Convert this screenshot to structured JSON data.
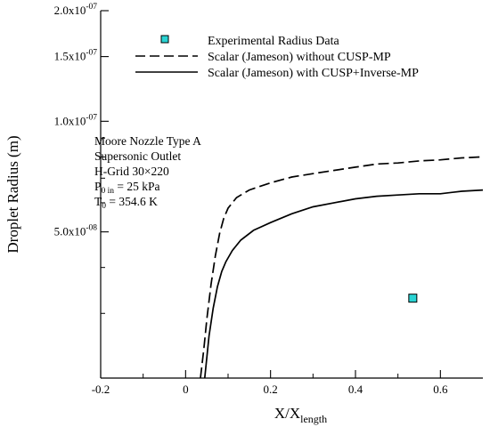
{
  "chart_data": {
    "type": "line",
    "xlabel_main": "X/X",
    "xlabel_sub": "length",
    "ylabel": "Droplet Radius (m)",
    "xlim": [
      -0.2,
      0.7
    ],
    "ylim": [
      2e-08,
      2e-07
    ],
    "y_scale": "log",
    "x_ticks": [
      -0.2,
      0,
      0.2,
      0.4,
      0.6
    ],
    "x_tick_labels": [
      "-0.2",
      "0",
      "0.2",
      "0.4",
      "0.6"
    ],
    "y_ticks": [
      {
        "value": 5e-08,
        "mant": "5.0x10",
        "exp": "-08"
      },
      {
        "value": 1e-07,
        "mant": "1.0x10",
        "exp": "-07"
      },
      {
        "value": 1.5e-07,
        "mant": "1.5x10",
        "exp": "-07"
      },
      {
        "value": 2e-07,
        "mant": "2.0x10",
        "exp": "-07"
      }
    ],
    "y_minor_ticks": [
      3e-08,
      4e-08,
      6e-08,
      7e-08,
      8e-08,
      9e-08
    ],
    "legend": {
      "placement": "top-center",
      "entries": [
        {
          "label": "Experimental Radius Data",
          "style": "marker"
        },
        {
          "label": "Scalar (Jameson) without CUSP-MP",
          "style": "dashed"
        },
        {
          "label": "Scalar (Jameson) with CUSP+Inverse-MP",
          "style": "solid"
        }
      ]
    },
    "annotation": {
      "lines": [
        "Moore Nozzle Type A",
        "Supersonic Outlet",
        "H-Grid 30×220"
      ],
      "p_main": "P",
      "p_sub": "0 in",
      "p_value": " = 25 kPa",
      "t_main": "T",
      "t_sub": "0",
      "t_value": " = 354.6 K"
    },
    "series": [
      {
        "style": "dashed",
        "x": [
          0.035,
          0.043,
          0.05,
          0.06,
          0.07,
          0.08,
          0.09,
          0.1,
          0.12,
          0.15,
          0.2,
          0.25,
          0.3,
          0.35,
          0.4,
          0.45,
          0.5,
          0.55,
          0.6,
          0.65,
          0.7
        ],
        "y": [
          2e-08,
          2.4e-08,
          2.9e-08,
          3.6e-08,
          4.3e-08,
          4.95e-08,
          5.45e-08,
          5.8e-08,
          6.2e-08,
          6.5e-08,
          6.8e-08,
          7.05e-08,
          7.2e-08,
          7.35e-08,
          7.5e-08,
          7.65e-08,
          7.7e-08,
          7.8e-08,
          7.85e-08,
          7.95e-08,
          8e-08
        ]
      },
      {
        "style": "solid",
        "x": [
          0.045,
          0.055,
          0.065,
          0.075,
          0.085,
          0.095,
          0.11,
          0.13,
          0.16,
          0.2,
          0.25,
          0.3,
          0.35,
          0.4,
          0.45,
          0.5,
          0.55,
          0.6,
          0.65,
          0.7
        ],
        "y": [
          2e-08,
          2.6e-08,
          3.1e-08,
          3.55e-08,
          3.9e-08,
          4.15e-08,
          4.45e-08,
          4.75e-08,
          5.05e-08,
          5.3e-08,
          5.6e-08,
          5.85e-08,
          6e-08,
          6.15e-08,
          6.25e-08,
          6.3e-08,
          6.35e-08,
          6.35e-08,
          6.45e-08,
          6.5e-08
        ]
      }
    ],
    "points": [
      {
        "x": 0.535,
        "y": 3.3e-08,
        "color": "#2ad3d3"
      }
    ]
  }
}
